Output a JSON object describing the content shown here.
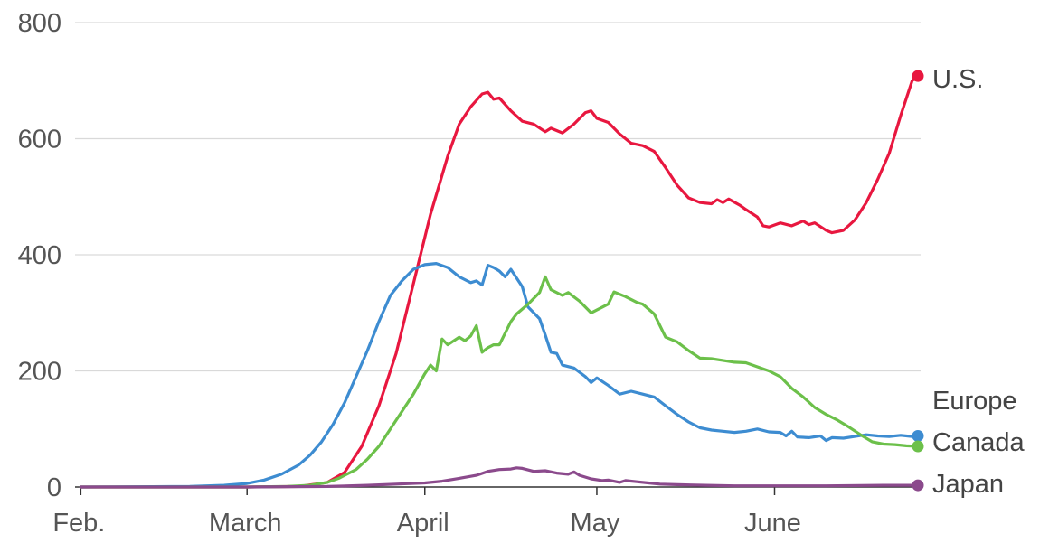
{
  "chart_data": {
    "type": "line",
    "title": "",
    "xlabel": "",
    "ylabel": "",
    "x_axis": {
      "start": "Feb. 1",
      "end": "June 26",
      "ticks": [
        {
          "label": "Feb.",
          "date": "Feb. 1"
        },
        {
          "label": "March",
          "date": "March 1"
        },
        {
          "label": "April",
          "date": "April 1"
        },
        {
          "label": "May",
          "date": "May 1"
        },
        {
          "label": "June",
          "date": "June 1"
        }
      ]
    },
    "y_axis": {
      "ylim": [
        0,
        800
      ],
      "ticks": [
        0,
        200,
        400,
        600,
        800
      ],
      "tick_labels": [
        "0",
        "200",
        "400",
        "600",
        "800"
      ]
    },
    "grid": true,
    "legend": "direct labels at right end of lines",
    "series": [
      {
        "name": "U.S.",
        "color": "#e8173f",
        "end_marker": true,
        "points": [
          [
            "Feb. 1",
            0
          ],
          [
            "March 1",
            0
          ],
          [
            "March 10",
            1
          ],
          [
            "March 15",
            8
          ],
          [
            "March 18",
            25
          ],
          [
            "March 21",
            70
          ],
          [
            "March 24",
            140
          ],
          [
            "March 27",
            230
          ],
          [
            "March 30",
            350
          ],
          [
            "April 2",
            470
          ],
          [
            "April 5",
            570
          ],
          [
            "April 7",
            625
          ],
          [
            "April 9",
            655
          ],
          [
            "April 11",
            677
          ],
          [
            "April 12",
            680
          ],
          [
            "April 13",
            668
          ],
          [
            "April 14",
            670
          ],
          [
            "April 16",
            648
          ],
          [
            "April 18",
            630
          ],
          [
            "April 20",
            625
          ],
          [
            "April 22",
            612
          ],
          [
            "April 23",
            618
          ],
          [
            "April 25",
            610
          ],
          [
            "April 27",
            625
          ],
          [
            "April 29",
            645
          ],
          [
            "April 30",
            648
          ],
          [
            "May 1",
            635
          ],
          [
            "May 3",
            628
          ],
          [
            "May 5",
            608
          ],
          [
            "May 7",
            592
          ],
          [
            "May 9",
            588
          ],
          [
            "May 11",
            578
          ],
          [
            "May 13",
            550
          ],
          [
            "May 15",
            520
          ],
          [
            "May 17",
            498
          ],
          [
            "May 19",
            490
          ],
          [
            "May 21",
            488
          ],
          [
            "May 22",
            495
          ],
          [
            "May 23",
            490
          ],
          [
            "May 24",
            496
          ],
          [
            "May 26",
            485
          ],
          [
            "May 27",
            478
          ],
          [
            "May 29",
            465
          ],
          [
            "May 30",
            450
          ],
          [
            "May 31",
            448
          ],
          [
            "June 2",
            455
          ],
          [
            "June 4",
            450
          ],
          [
            "June 6",
            458
          ],
          [
            "June 7",
            452
          ],
          [
            "June 8",
            455
          ],
          [
            "June 10",
            442
          ],
          [
            "June 11",
            438
          ],
          [
            "June 13",
            442
          ],
          [
            "June 15",
            460
          ],
          [
            "June 17",
            490
          ],
          [
            "June 19",
            530
          ],
          [
            "June 21",
            575
          ],
          [
            "June 23",
            640
          ],
          [
            "June 25",
            700
          ],
          [
            "June 26",
            708
          ]
        ]
      },
      {
        "name": "Europe",
        "color": "#3d8cd1",
        "end_marker": true,
        "points": [
          [
            "Feb. 1",
            0
          ],
          [
            "Feb. 20",
            1
          ],
          [
            "Feb. 26",
            3
          ],
          [
            "March 1",
            6
          ],
          [
            "March 4",
            12
          ],
          [
            "March 7",
            22
          ],
          [
            "March 10",
            38
          ],
          [
            "March 12",
            55
          ],
          [
            "March 14",
            78
          ],
          [
            "March 16",
            108
          ],
          [
            "March 18",
            145
          ],
          [
            "March 20",
            190
          ],
          [
            "March 22",
            235
          ],
          [
            "March 24",
            285
          ],
          [
            "March 26",
            330
          ],
          [
            "March 28",
            355
          ],
          [
            "March 30",
            375
          ],
          [
            "April 1",
            383
          ],
          [
            "April 3",
            385
          ],
          [
            "April 5",
            378
          ],
          [
            "April 7",
            362
          ],
          [
            "April 9",
            352
          ],
          [
            "April 10",
            355
          ],
          [
            "April 11",
            348
          ],
          [
            "April 12",
            382
          ],
          [
            "April 13",
            378
          ],
          [
            "April 14",
            372
          ],
          [
            "April 15",
            362
          ],
          [
            "April 16",
            375
          ],
          [
            "April 18",
            345
          ],
          [
            "April 19",
            310
          ],
          [
            "April 21",
            290
          ],
          [
            "April 22",
            262
          ],
          [
            "April 23",
            232
          ],
          [
            "April 24",
            230
          ],
          [
            "April 25",
            210
          ],
          [
            "April 27",
            205
          ],
          [
            "April 29",
            190
          ],
          [
            "April 30",
            180
          ],
          [
            "May 1",
            188
          ],
          [
            "May 3",
            175
          ],
          [
            "May 5",
            160
          ],
          [
            "May 7",
            165
          ],
          [
            "May 9",
            160
          ],
          [
            "May 11",
            155
          ],
          [
            "May 13",
            140
          ],
          [
            "May 15",
            125
          ],
          [
            "May 17",
            112
          ],
          [
            "May 19",
            102
          ],
          [
            "May 21",
            98
          ],
          [
            "May 23",
            96
          ],
          [
            "May 25",
            94
          ],
          [
            "May 27",
            96
          ],
          [
            "May 29",
            100
          ],
          [
            "May 31",
            95
          ],
          [
            "June 2",
            94
          ],
          [
            "June 3",
            88
          ],
          [
            "June 4",
            96
          ],
          [
            "June 5",
            86
          ],
          [
            "June 7",
            85
          ],
          [
            "June 9",
            88
          ],
          [
            "June 10",
            80
          ],
          [
            "June 11",
            85
          ],
          [
            "June 13",
            84
          ],
          [
            "June 15",
            87
          ],
          [
            "June 17",
            90
          ],
          [
            "June 19",
            88
          ],
          [
            "June 21",
            87
          ],
          [
            "June 23",
            89
          ],
          [
            "June 25",
            87
          ],
          [
            "June 26",
            88
          ]
        ]
      },
      {
        "name": "Canada",
        "color": "#6cc04a",
        "end_marker": true,
        "points": [
          [
            "Feb. 1",
            0
          ],
          [
            "March 1",
            0
          ],
          [
            "March 8",
            1
          ],
          [
            "March 12",
            3
          ],
          [
            "March 15",
            8
          ],
          [
            "March 17",
            15
          ],
          [
            "March 19",
            25
          ],
          [
            "March 20",
            30
          ],
          [
            "March 22",
            48
          ],
          [
            "March 24",
            70
          ],
          [
            "March 26",
            100
          ],
          [
            "March 28",
            130
          ],
          [
            "March 30",
            160
          ],
          [
            "April 1",
            195
          ],
          [
            "April 2",
            210
          ],
          [
            "April 3",
            200
          ],
          [
            "April 4",
            255
          ],
          [
            "April 5",
            245
          ],
          [
            "April 7",
            258
          ],
          [
            "April 8",
            252
          ],
          [
            "April 9",
            260
          ],
          [
            "April 10",
            278
          ],
          [
            "April 11",
            232
          ],
          [
            "April 12",
            240
          ],
          [
            "April 13",
            245
          ],
          [
            "April 14",
            245
          ],
          [
            "April 16",
            285
          ],
          [
            "April 17",
            298
          ],
          [
            "April 19",
            315
          ],
          [
            "April 21",
            335
          ],
          [
            "April 22",
            362
          ],
          [
            "April 23",
            340
          ],
          [
            "April 25",
            330
          ],
          [
            "April 26",
            335
          ],
          [
            "April 28",
            320
          ],
          [
            "April 30",
            300
          ],
          [
            "May 2",
            310
          ],
          [
            "May 3",
            315
          ],
          [
            "May 4",
            336
          ],
          [
            "May 6",
            328
          ],
          [
            "May 8",
            318
          ],
          [
            "May 9",
            315
          ],
          [
            "May 11",
            298
          ],
          [
            "May 13",
            258
          ],
          [
            "May 15",
            250
          ],
          [
            "May 17",
            235
          ],
          [
            "May 19",
            222
          ],
          [
            "May 21",
            221
          ],
          [
            "May 23",
            218
          ],
          [
            "May 25",
            215
          ],
          [
            "May 27",
            214
          ],
          [
            "May 29",
            207
          ],
          [
            "May 31",
            200
          ],
          [
            "June 2",
            190
          ],
          [
            "June 4",
            170
          ],
          [
            "June 6",
            155
          ],
          [
            "June 8",
            137
          ],
          [
            "June 10",
            125
          ],
          [
            "June 12",
            115
          ],
          [
            "June 14",
            103
          ],
          [
            "June 16",
            90
          ],
          [
            "June 18",
            78
          ],
          [
            "June 20",
            74
          ],
          [
            "June 22",
            73
          ],
          [
            "June 24",
            71
          ],
          [
            "June 26",
            70
          ]
        ]
      },
      {
        "name": "Japan",
        "color": "#8b4a8c",
        "end_marker": true,
        "points": [
          [
            "Feb. 1",
            0
          ],
          [
            "March 1",
            0
          ],
          [
            "March 15",
            1
          ],
          [
            "March 22",
            3
          ],
          [
            "March 27",
            5
          ],
          [
            "April 1",
            7
          ],
          [
            "April 4",
            10
          ],
          [
            "April 7",
            15
          ],
          [
            "April 10",
            20
          ],
          [
            "April 12",
            27
          ],
          [
            "April 14",
            30
          ],
          [
            "April 16",
            31
          ],
          [
            "April 17",
            33
          ],
          [
            "April 18",
            32
          ],
          [
            "April 20",
            27
          ],
          [
            "April 22",
            28
          ],
          [
            "April 24",
            24
          ],
          [
            "April 26",
            22
          ],
          [
            "April 27",
            26
          ],
          [
            "April 28",
            20
          ],
          [
            "April 30",
            14
          ],
          [
            "May 2",
            11
          ],
          [
            "May 3",
            12
          ],
          [
            "May 5",
            8
          ],
          [
            "May 6",
            11
          ],
          [
            "May 8",
            9
          ],
          [
            "May 10",
            7
          ],
          [
            "May 12",
            5
          ],
          [
            "May 15",
            4
          ],
          [
            "May 20",
            3
          ],
          [
            "May 25",
            2
          ],
          [
            "June 1",
            2
          ],
          [
            "June 10",
            2
          ],
          [
            "June 20",
            3
          ],
          [
            "June 26",
            3
          ]
        ]
      }
    ]
  }
}
